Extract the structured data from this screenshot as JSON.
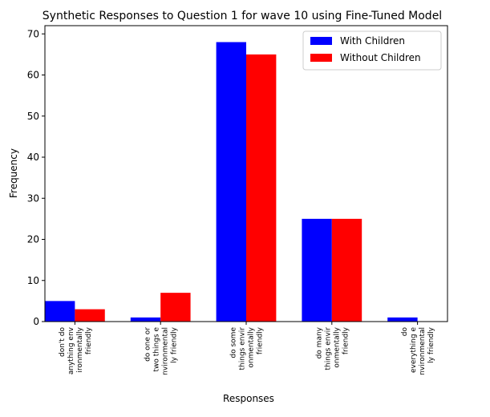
{
  "chart_data": {
    "type": "bar",
    "title": "Synthetic Responses to Question 1 for wave 10 using Fine-Tuned Model",
    "xlabel": "Responses",
    "ylabel": "Frequency",
    "ylim": [
      0,
      72
    ],
    "yticks": [
      0,
      10,
      20,
      30,
      40,
      50,
      60,
      70
    ],
    "grid": false,
    "legend_position": "top-right",
    "categories": [
      [
        "don't do",
        "anything env",
        "ironmentally",
        "friendly"
      ],
      [
        "do one or",
        "two things e",
        "nvironmental",
        "ly friendly"
      ],
      [
        "do some",
        "things envir",
        "onmentally",
        "friendly"
      ],
      [
        "do many",
        "things envir",
        "onmentally",
        "friendly"
      ],
      [
        "do",
        "everything e",
        "nvironmental",
        "ly friendly"
      ]
    ],
    "series": [
      {
        "name": "With Children",
        "color": "#0000ff",
        "values": [
          5,
          1,
          68,
          25,
          1
        ]
      },
      {
        "name": "Without Children",
        "color": "#ff0000",
        "values": [
          3,
          7,
          65,
          25,
          0
        ]
      }
    ]
  }
}
